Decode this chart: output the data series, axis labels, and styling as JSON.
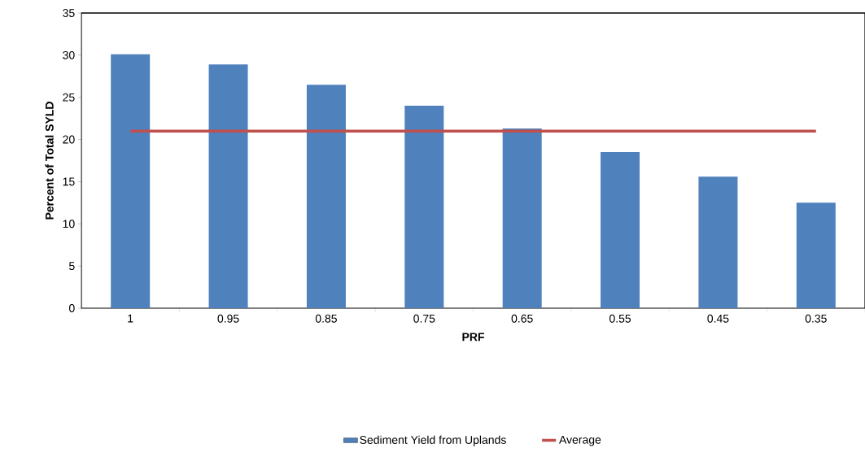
{
  "chart_data": {
    "type": "bar",
    "xlabel": "PRF",
    "ylabel": "Percent of Total SYLD",
    "categories": [
      "1",
      "0.95",
      "0.85",
      "0.75",
      "0.65",
      "0.55",
      "0.45",
      "0.35"
    ],
    "series": [
      {
        "name": "Sediment Yield from Uplands",
        "color": "#4f81bd",
        "values": [
          30.1,
          28.9,
          26.5,
          24.0,
          21.3,
          18.5,
          15.6,
          12.5
        ]
      },
      {
        "name": "Average",
        "type": "line",
        "color": "#c0504d",
        "values": [
          21.0,
          21.0,
          21.0,
          21.0,
          21.0,
          21.0,
          21.0,
          21.0
        ]
      }
    ],
    "ylim": [
      0,
      35
    ],
    "yticks": [
      0,
      5,
      10,
      15,
      20,
      25,
      30,
      35
    ],
    "grid": false,
    "legend": "bottom",
    "marker": "none"
  }
}
